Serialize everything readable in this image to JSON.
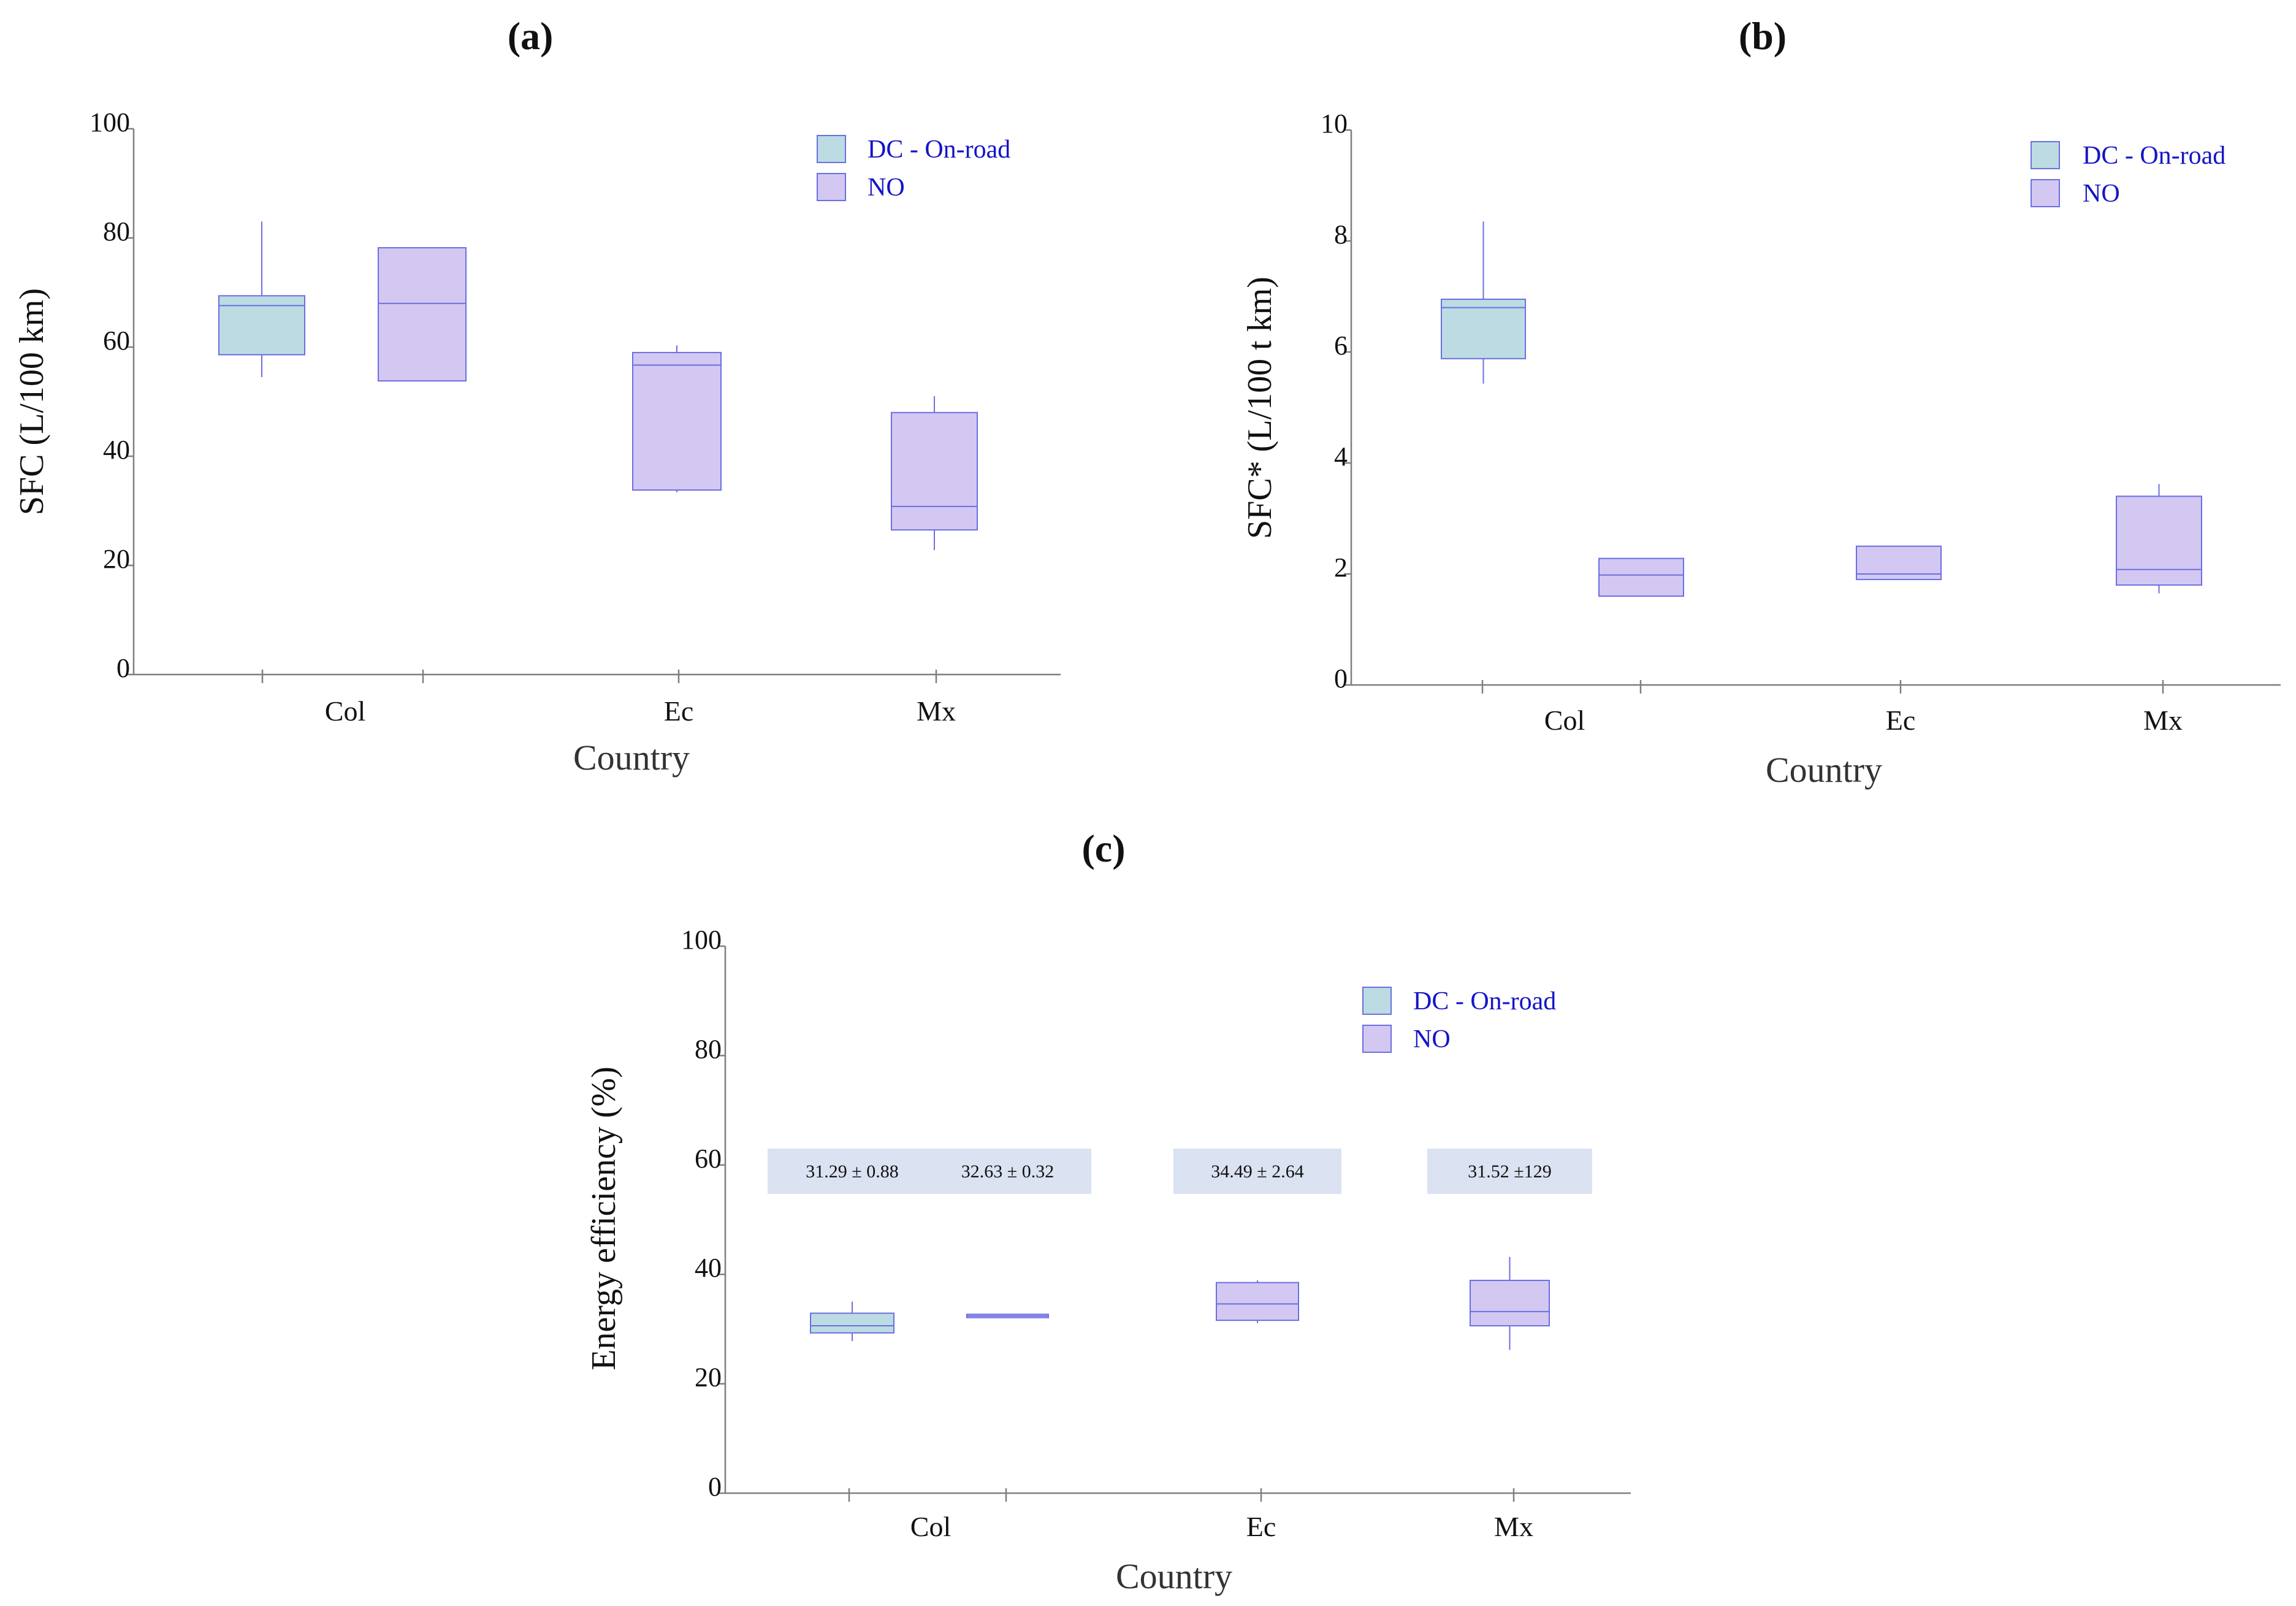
{
  "colors": {
    "dc_fill": "#bcdbe3",
    "no_fill": "#d2c8f2",
    "box_stroke": "#6a6fe0",
    "legend_text": "#1414c8",
    "axis": "#7f7f7f",
    "annot_fill": "#dbe2f1"
  },
  "chart_data": [
    {
      "id": "a",
      "panel_label": "(a)",
      "type": "boxplot",
      "ylabel": "SFC (L/100 km)",
      "xlabel": "Country",
      "ylim": [
        0,
        100
      ],
      "yticks": [
        "0",
        "20",
        "40",
        "60",
        "80",
        "100"
      ],
      "categories": [
        "Col",
        "Ec",
        "Mx"
      ],
      "legend": [
        "DC - On-road",
        "NO"
      ],
      "boxes": [
        {
          "category": "Col",
          "series": "DC - On-road",
          "min": 54.5,
          "q1": 58.6,
          "median": 67.6,
          "q3": 69.4,
          "max": 83.0
        },
        {
          "category": "Col",
          "series": "NO",
          "min": 53.8,
          "q1": 53.8,
          "median": 68.0,
          "q3": 78.2,
          "max": 78.2
        },
        {
          "category": "Ec",
          "series": "NO",
          "min": 33.4,
          "q1": 33.8,
          "median": 56.7,
          "q3": 59.0,
          "max": 60.3
        },
        {
          "category": "Mx",
          "series": "NO",
          "min": 22.8,
          "q1": 26.5,
          "median": 30.8,
          "q3": 48.0,
          "max": 51.0
        }
      ]
    },
    {
      "id": "b",
      "panel_label": "(b)",
      "type": "boxplot",
      "ylabel": "SFC* (L/100 t km)",
      "xlabel": "Country",
      "ylim": [
        0,
        10
      ],
      "yticks": [
        "0",
        "2",
        "4",
        "6",
        "8",
        "10"
      ],
      "categories": [
        "Col",
        "Ec",
        "Mx"
      ],
      "legend": [
        "DC - On-road",
        "NO"
      ],
      "boxes": [
        {
          "category": "Col",
          "series": "DC - On-road",
          "min": 5.43,
          "q1": 5.88,
          "median": 6.8,
          "q3": 6.95,
          "max": 8.35
        },
        {
          "category": "Col",
          "series": "NO",
          "min": 1.6,
          "q1": 1.6,
          "median": 1.98,
          "q3": 2.28,
          "max": 2.28
        },
        {
          "category": "Ec",
          "series": "NO",
          "min": 1.9,
          "q1": 1.9,
          "median": 2.0,
          "q3": 2.5,
          "max": 2.5
        },
        {
          "category": "Mx",
          "series": "NO",
          "min": 1.65,
          "q1": 1.8,
          "median": 2.08,
          "q3": 3.4,
          "max": 3.62
        }
      ]
    },
    {
      "id": "c",
      "panel_label": "(c)",
      "type": "boxplot",
      "ylabel": "Energy efficiency (%)",
      "xlabel": "Country",
      "ylim": [
        0,
        100
      ],
      "yticks": [
        "0",
        "20",
        "40",
        "60",
        "80",
        "100"
      ],
      "categories": [
        "Col",
        "Ec",
        "Mx"
      ],
      "legend": [
        "DC - On-road",
        "NO"
      ],
      "boxes": [
        {
          "category": "Col",
          "series": "DC - On-road",
          "min": 27.8,
          "q1": 29.3,
          "median": 30.6,
          "q3": 32.9,
          "max": 35.0
        },
        {
          "category": "Col",
          "series": "NO",
          "min": 32.1,
          "q1": 32.1,
          "median": 32.4,
          "q3": 32.7,
          "max": 32.7
        },
        {
          "category": "Ec",
          "series": "NO",
          "min": 31.1,
          "q1": 31.6,
          "median": 34.6,
          "q3": 38.5,
          "max": 38.9
        },
        {
          "category": "Mx",
          "series": "NO",
          "min": 26.2,
          "q1": 30.6,
          "median": 33.2,
          "q3": 38.9,
          "max": 43.2
        }
      ],
      "annotations": [
        {
          "category": "Col",
          "series": "DC - On-road",
          "text": "31.29 ± 0.88"
        },
        {
          "category": "Col",
          "series": "NO",
          "text": "32.63 ± 0.32"
        },
        {
          "category": "Ec",
          "series": "NO",
          "text": "34.49 ± 2.64"
        },
        {
          "category": "Mx",
          "series": "NO",
          "text": "31.52 ±129"
        }
      ]
    }
  ]
}
